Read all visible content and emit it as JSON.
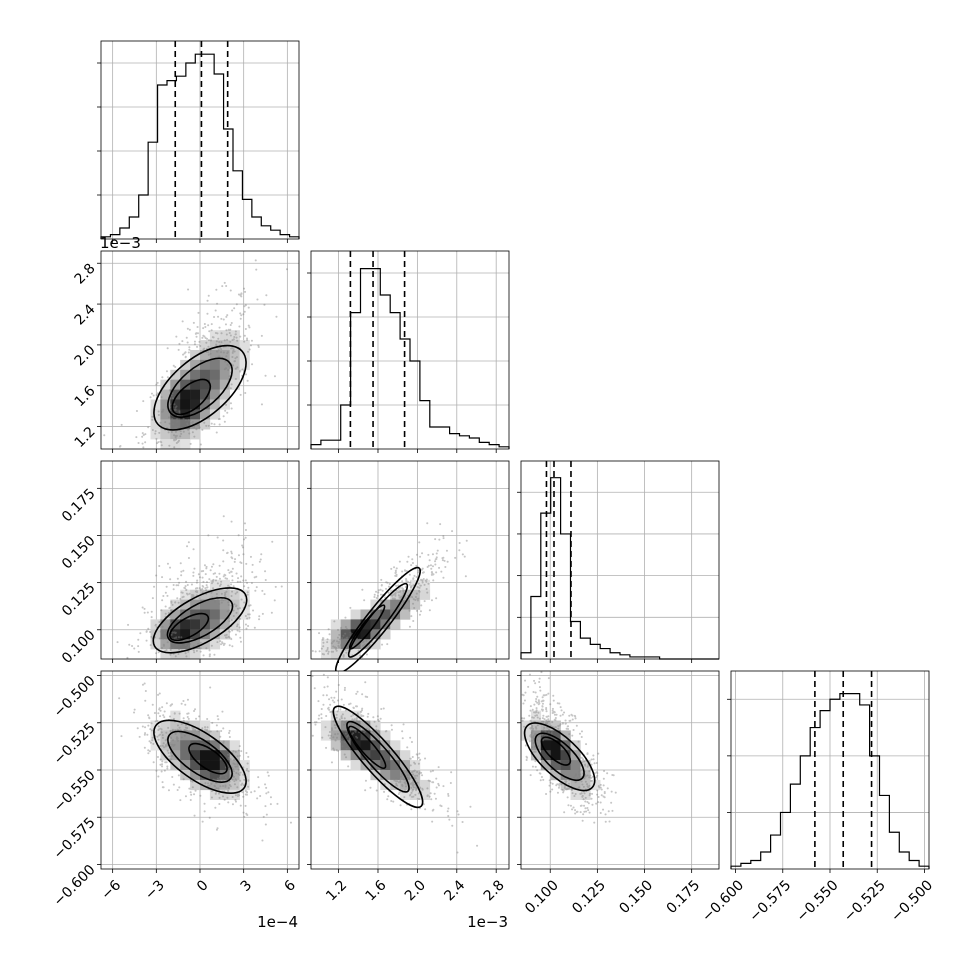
{
  "chart_data": {
    "type": "corner",
    "n_params": 4,
    "panels": {
      "hist_0": {
        "type": "histogram",
        "bin_range": [
          -6.8,
          6.8
        ],
        "counts": [
          1,
          2,
          5,
          10,
          20,
          44,
          70,
          72,
          74,
          80,
          84,
          84,
          75,
          50,
          31,
          18,
          10,
          6,
          4,
          2,
          1
        ],
        "ylim": [
          0,
          90
        ],
        "quantiles": [
          -1.7,
          0.1,
          1.9
        ],
        "y_ticks": [
          20,
          40,
          60,
          80
        ]
      },
      "hist_1": {
        "type": "histogram",
        "bin_range": [
          0.00092,
          0.00293
        ],
        "counts": [
          2,
          4,
          4,
          20,
          62,
          82,
          82,
          70,
          62,
          50,
          40,
          22,
          10,
          10,
          7,
          6,
          5,
          3,
          2,
          1
        ],
        "ylim": [
          0,
          90
        ],
        "quantiles": [
          0.00132,
          0.00155,
          0.00187
        ],
        "y_ticks": [
          20,
          40,
          60,
          80
        ]
      },
      "hist_2": {
        "type": "histogram",
        "bin_range": [
          0.0845,
          0.1895
        ],
        "counts": [
          3,
          30,
          70,
          87,
          60,
          18,
          10,
          7,
          5,
          3,
          2,
          1,
          1,
          1,
          0,
          0,
          0,
          0,
          0,
          0
        ],
        "ylim": [
          0,
          95
        ],
        "quantiles": [
          0.098,
          0.102,
          0.111
        ],
        "y_ticks": [
          20,
          40,
          60,
          80
        ]
      },
      "hist_3": {
        "type": "histogram",
        "bin_range": [
          -0.6024,
          -0.4976
        ],
        "counts": [
          1,
          2,
          3,
          6,
          12,
          20,
          30,
          40,
          50,
          56,
          60,
          62,
          62,
          58,
          40,
          26,
          13,
          6,
          3,
          1
        ],
        "ylim": [
          0,
          70
        ],
        "quantiles": [
          -0.558,
          -0.543,
          -0.528
        ],
        "y_ticks": [
          20,
          40,
          60
        ]
      },
      "scatter_1_0": {
        "xlim": [
          -6.8,
          6.8
        ],
        "ylim": [
          0.00098,
          0.00292
        ],
        "center": [
          0,
          0.00158
        ],
        "sd": [
          1.8,
          0.00032
        ],
        "rho": 0.65,
        "skew": 0.3,
        "peak": [
          -1.2,
          0.0014
        ]
      },
      "scatter_2_0": {
        "xlim": [
          -6.8,
          6.8
        ],
        "ylim": [
          0.0845,
          0.1895
        ],
        "center": [
          0,
          0.105
        ],
        "sd": [
          1.8,
          0.011
        ],
        "rho": 0.45,
        "skew": 0.6,
        "peak": [
          -1.5,
          0.098
        ]
      },
      "scatter_2_1": {
        "xlim": [
          0.00092,
          0.00293
        ],
        "ylim": [
          0.0845,
          0.1895
        ],
        "center": [
          0.0016,
          0.105
        ],
        "sd": [
          0.0003,
          0.011
        ],
        "rho": 0.85,
        "skew": 0.6,
        "peak": [
          0.00138,
          0.098
        ]
      },
      "scatter_3_0": {
        "xlim": [
          -6.8,
          6.8
        ],
        "ylim": [
          -0.6024,
          -0.4976
        ],
        "center": [
          0,
          -0.543
        ],
        "sd": [
          1.8,
          0.0125
        ],
        "rho": -0.55,
        "skew": 0,
        "peak": [
          1.1,
          -0.545
        ]
      },
      "scatter_3_1": {
        "xlim": [
          0.00092,
          0.00293
        ],
        "ylim": [
          -0.6024,
          -0.4976
        ],
        "center": [
          0.0016,
          -0.543
        ],
        "sd": [
          0.0003,
          0.0125
        ],
        "rho": -0.8,
        "skew": 0.3,
        "peak": [
          0.00138,
          -0.533
        ]
      },
      "scatter_3_2": {
        "xlim": [
          0.0845,
          0.1895
        ],
        "ylim": [
          -0.6024,
          -0.4976
        ],
        "center": [
          0.105,
          -0.543
        ],
        "sd": [
          0.011,
          0.0125
        ],
        "rho": -0.7,
        "skew": 0.5,
        "peak": [
          0.101,
          -0.537
        ]
      }
    },
    "axes": {
      "x": [
        {
          "ticks": [
            -6,
            -3,
            0,
            3,
            6
          ],
          "tick_labels": [
            "−6",
            "−3",
            "0",
            "3",
            "6"
          ],
          "offset_label": "1e−4"
        },
        {
          "ticks": [
            0.0012,
            0.0016,
            0.002,
            0.0024,
            0.0028
          ],
          "tick_labels": [
            "1.2",
            "1.6",
            "2.0",
            "2.4",
            "2.8"
          ],
          "offset_label": "1e−3"
        },
        {
          "ticks": [
            0.1,
            0.125,
            0.15,
            0.175
          ],
          "tick_labels": [
            "0.100",
            "0.125",
            "0.150",
            "0.175"
          ],
          "offset_label": ""
        },
        {
          "ticks": [
            -0.6,
            -0.575,
            -0.55,
            -0.525,
            -0.5
          ],
          "tick_labels": [
            "−0.600",
            "−0.575",
            "−0.550",
            "−0.525",
            "−0.500"
          ],
          "offset_label": ""
        }
      ],
      "y": [
        null,
        {
          "ticks": [
            0.0012,
            0.0016,
            0.002,
            0.0024,
            0.0028
          ],
          "tick_labels": [
            "1.2",
            "1.6",
            "2.0",
            "2.4",
            "2.8"
          ],
          "offset_label": "1e−3"
        },
        {
          "ticks": [
            0.1,
            0.125,
            0.15,
            0.175
          ],
          "tick_labels": [
            "0.100",
            "0.125",
            "0.150",
            "0.175"
          ],
          "offset_label": ""
        },
        {
          "ticks": [
            -0.6,
            -0.575,
            -0.55,
            -0.525,
            -0.5
          ],
          "tick_labels": [
            "−0.600",
            "−0.575",
            "−0.550",
            "−0.525",
            "−0.500"
          ],
          "offset_label": ""
        }
      ]
    },
    "grid": true,
    "colors": {
      "line": "#000000",
      "grid": "#b0b0b0",
      "points": "#808080"
    }
  }
}
